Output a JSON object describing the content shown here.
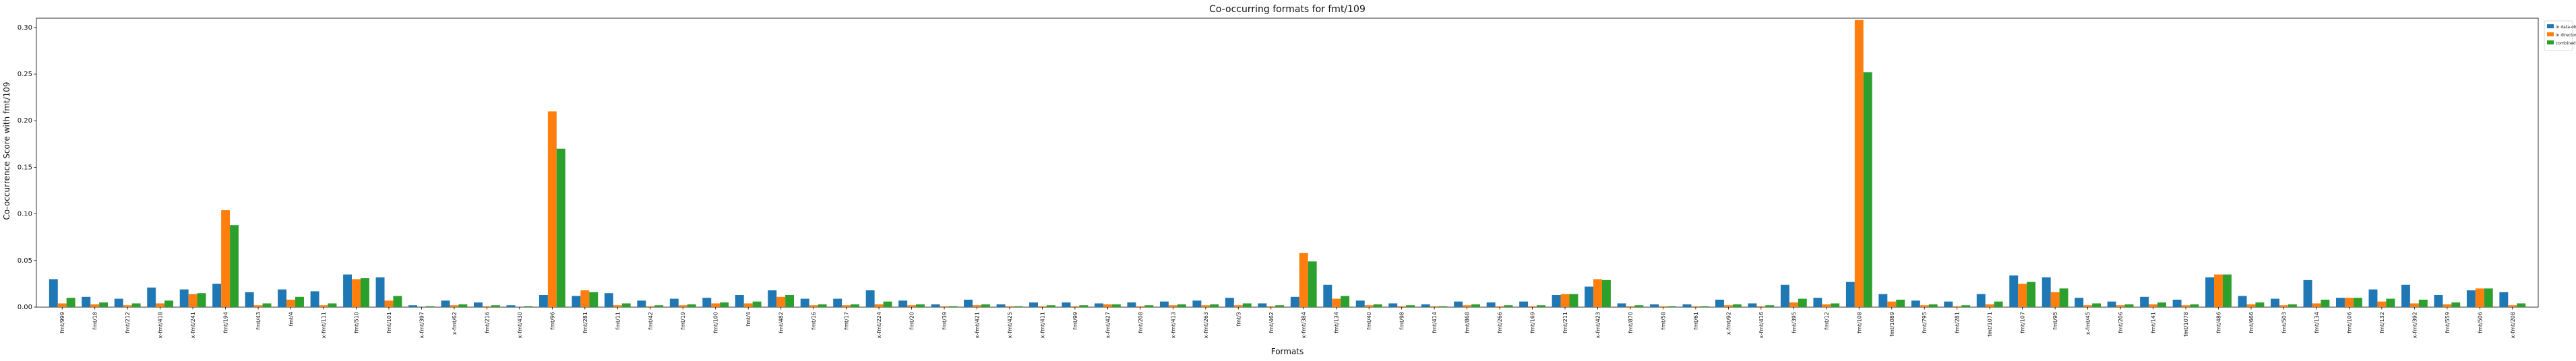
{
  "chart_data": {
    "type": "bar",
    "title": "Co-occurring formats for fmt/109",
    "xlabel": "Formats",
    "ylabel": "Co-occurrence Score with fmt/109",
    "ylim": [
      0,
      0.31
    ],
    "yticks": [
      0.0,
      0.05,
      0.1,
      0.15,
      0.2,
      0.25,
      0.3
    ],
    "ytick_labels": [
      "0.00",
      "0.05",
      "0.10",
      "0.15",
      "0.20",
      "0.25",
      "0.30"
    ],
    "grid": false,
    "legend_position": "outside-top-right",
    "colors": {
      "in data-objects": "#1f77b4",
      "in directories": "#ff7f0e",
      "combined": "#2ca02c"
    },
    "categories": [
      "fmt/999",
      "fmt/18",
      "fmt/212",
      "x-fmt/418",
      "x-fmt/241",
      "fmt/194",
      "fmt/43",
      "fmt/4",
      "x-fmt/111",
      "fmt/510",
      "fmt/101",
      "x-fmt/397",
      "x-fmt/62",
      "fmt/216",
      "x-fmt/430",
      "fmt/96",
      "fmt/281",
      "fmt/11",
      "fmt/42",
      "fmt/19",
      "fmt/100",
      "fmt/4",
      "fmt/482",
      "fmt/16",
      "fmt/17",
      "x-fmt/224",
      "fmt/20",
      "fmt/39",
      "x-fmt/421",
      "x-fmt/425",
      "x-fmt/411",
      "fmt/99",
      "x-fmt/427",
      "fmt/208",
      "x-fmt/413",
      "x-fmt/263",
      "fmt/3",
      "fmt/462",
      "x-fmt/384",
      "fmt/134",
      "fmt/40",
      "fmt/98",
      "fmt/414",
      "fmt/868",
      "fmt/266",
      "fmt/169",
      "fmt/211",
      "x-fmt/423",
      "fmt/870",
      "fmt/58",
      "fmt/61",
      "x-fmt/92",
      "x-fmt/416",
      "fmt/395",
      "fmt/12",
      "fmt/108",
      "fmt/1089",
      "fmt/795",
      "fmt/281",
      "fmt/1071",
      "fmt/107",
      "fmt/95",
      "x-fmt/45",
      "fmt/206",
      "fmt/141",
      "fmt/1078",
      "fmt/486",
      "fmt/666",
      "fmt/503",
      "fmt/134",
      "fmt/106",
      "fmt/132",
      "x-fmt/392",
      "fmt/559",
      "fmt/506",
      "x-fmt/208"
    ],
    "series": [
      {
        "name": "in data-objects",
        "values": [
          0.03,
          0.011,
          0.009,
          0.021,
          0.019,
          0.025,
          0.016,
          0.019,
          0.017,
          0.035,
          0.032,
          0.002,
          0.007,
          0.005,
          0.002,
          0.013,
          0.012,
          0.015,
          0.007,
          0.009,
          0.01,
          0.013,
          0.018,
          0.009,
          0.009,
          0.018,
          0.007,
          0.003,
          0.008,
          0.003,
          0.005,
          0.005,
          0.004,
          0.005,
          0.006,
          0.007,
          0.01,
          0.004,
          0.011,
          0.024,
          0.007,
          0.004,
          0.003,
          0.006,
          0.005,
          0.006,
          0.013,
          0.022,
          0.004,
          0.003,
          0.003,
          0.008,
          0.004,
          0.024,
          0.01,
          0.027,
          0.014,
          0.007,
          0.006,
          0.014,
          0.034,
          0.032,
          0.01,
          0.006,
          0.011,
          0.008,
          0.032,
          0.012,
          0.009,
          0.029,
          0.01,
          0.019,
          0.024,
          0.013,
          0.018,
          0.016
        ]
      },
      {
        "name": "in directories",
        "values": [
          0.004,
          0.003,
          0.002,
          0.004,
          0.014,
          0.104,
          0.002,
          0.008,
          0.002,
          0.03,
          0.007,
          0.0,
          0.002,
          0.001,
          0.0,
          0.21,
          0.018,
          0.002,
          0.001,
          0.002,
          0.004,
          0.004,
          0.011,
          0.002,
          0.002,
          0.003,
          0.002,
          0.001,
          0.002,
          0.001,
          0.001,
          0.001,
          0.003,
          0.001,
          0.002,
          0.002,
          0.002,
          0.001,
          0.058,
          0.009,
          0.002,
          0.001,
          0.001,
          0.002,
          0.001,
          0.001,
          0.014,
          0.03,
          0.001,
          0.001,
          0.001,
          0.002,
          0.001,
          0.005,
          0.003,
          0.308,
          0.006,
          0.002,
          0.001,
          0.003,
          0.025,
          0.016,
          0.002,
          0.002,
          0.003,
          0.002,
          0.035,
          0.003,
          0.002,
          0.004,
          0.01,
          0.006,
          0.004,
          0.003,
          0.02,
          0.002
        ]
      },
      {
        "name": "combined",
        "values": [
          0.01,
          0.005,
          0.004,
          0.007,
          0.015,
          0.088,
          0.004,
          0.011,
          0.004,
          0.031,
          0.012,
          0.001,
          0.003,
          0.002,
          0.001,
          0.17,
          0.016,
          0.004,
          0.002,
          0.003,
          0.005,
          0.006,
          0.013,
          0.003,
          0.003,
          0.006,
          0.003,
          0.001,
          0.003,
          0.001,
          0.002,
          0.002,
          0.003,
          0.002,
          0.003,
          0.003,
          0.004,
          0.002,
          0.049,
          0.012,
          0.003,
          0.002,
          0.001,
          0.003,
          0.002,
          0.002,
          0.014,
          0.029,
          0.002,
          0.001,
          0.001,
          0.003,
          0.002,
          0.009,
          0.004,
          0.252,
          0.008,
          0.003,
          0.002,
          0.006,
          0.027,
          0.02,
          0.004,
          0.003,
          0.005,
          0.003,
          0.035,
          0.005,
          0.003,
          0.008,
          0.01,
          0.009,
          0.008,
          0.005,
          0.02,
          0.004
        ]
      }
    ]
  }
}
